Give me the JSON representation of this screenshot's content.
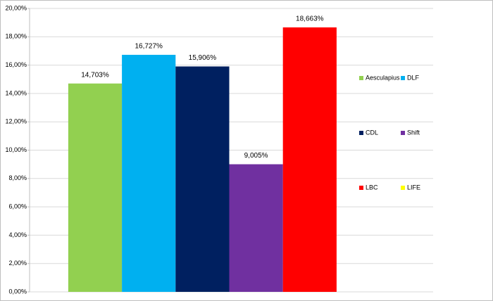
{
  "chart_data": {
    "type": "bar",
    "series": [
      {
        "name": "Aesculapius",
        "color": "#92d050",
        "values": [
          14.703
        ],
        "value_labels": [
          "14,703%"
        ]
      },
      {
        "name": "DLF",
        "color": "#00b0f0",
        "values": [
          16.727
        ],
        "value_labels": [
          "16,727%"
        ]
      },
      {
        "name": "CDL",
        "color": "#002060",
        "values": [
          15.906
        ],
        "value_labels": [
          "15,906%"
        ]
      },
      {
        "name": "Shift",
        "color": "#7030a0",
        "values": [
          9.005
        ],
        "value_labels": [
          "9,005%"
        ]
      },
      {
        "name": "LBC",
        "color": "#ff0000",
        "values": [
          18.663
        ],
        "value_labels": [
          "18,663%"
        ]
      },
      {
        "name": "LIFE",
        "color": "#ffff00",
        "values": [
          null
        ]
      }
    ],
    "ylim": [
      0,
      20
    ],
    "yticks": [
      {
        "value": 0,
        "label": "0,00%"
      },
      {
        "value": 2,
        "label": "2,00%"
      },
      {
        "value": 4,
        "label": "4,00%"
      },
      {
        "value": 6,
        "label": "6,00%"
      },
      {
        "value": 8,
        "label": "8,00%"
      },
      {
        "value": 10,
        "label": "10,00%"
      },
      {
        "value": 12,
        "label": "12,00%"
      },
      {
        "value": 14,
        "label": "14,00%"
      },
      {
        "value": 16,
        "label": "16,00%"
      },
      {
        "value": 18,
        "label": "18,00%"
      },
      {
        "value": 20,
        "label": "20,00%"
      }
    ],
    "grid": true,
    "legend": "right"
  }
}
